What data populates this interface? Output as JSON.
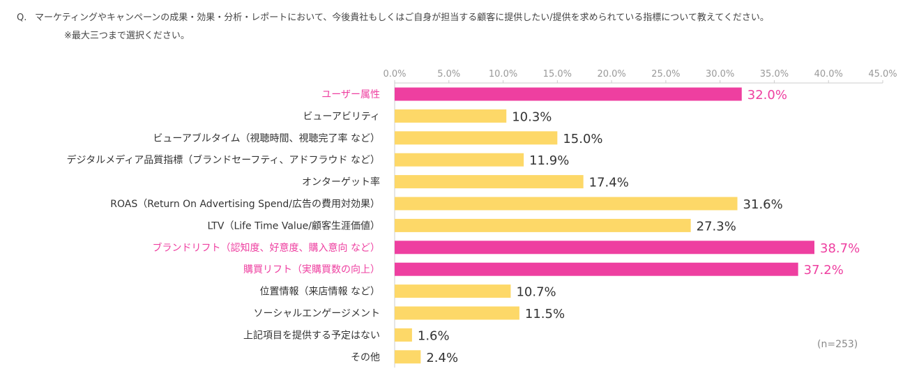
{
  "question": {
    "prefix": "Q.",
    "text": "マーケティングやキャンペーンの成果・効果・分析・レポートにおいて、今後貴社もしくはご自身が担当する顧客に提供したい/提供を求められている指標について教えてください。",
    "note": "※最大三つまで選択ください。"
  },
  "sample_size": "(n=253)",
  "colors": {
    "highlight": "#EE3FA0",
    "normal": "#FDD868",
    "axis_text": "#999999",
    "label_text": "#333333"
  },
  "chart_data": {
    "type": "bar",
    "orientation": "horizontal",
    "unit": "%",
    "xlim": [
      0,
      45
    ],
    "ticks": [
      0,
      5,
      10,
      15,
      20,
      25,
      30,
      35,
      40,
      45
    ],
    "tick_labels": [
      "0.0%",
      "5.0%",
      "10.0%",
      "15.0%",
      "20.0%",
      "25.0%",
      "30.0%",
      "35.0%",
      "40.0%",
      "45.0%"
    ],
    "categories": [
      "ユーザー属性",
      "ビューアビリティ",
      "ビューアブルタイム（視聴時間、視聴完了率 など）",
      "デジタルメディア品質指標（ブランドセーフティ、アドフラウド など）",
      "オンターゲット率",
      "ROAS（Return On Advertising Spend/広告の費用対効果）",
      "LTV（Life Time Value/顧客生涯価値）",
      "ブランドリフト（認知度、好意度、購入意向 など）",
      "購買リフト（実購買数の向上）",
      "位置情報（来店情報 など）",
      "ソーシャルエンゲージメント",
      "上記項目を提供する予定はない",
      "その他"
    ],
    "values": [
      32.0,
      10.3,
      15.0,
      11.9,
      17.4,
      31.6,
      27.3,
      38.7,
      37.2,
      10.7,
      11.5,
      1.6,
      2.4
    ],
    "value_labels": [
      "32.0%",
      "10.3%",
      "15.0%",
      "11.9%",
      "17.4%",
      "31.6%",
      "27.3%",
      "38.7%",
      "37.2%",
      "10.7%",
      "11.5%",
      "1.6%",
      "2.4%"
    ],
    "highlighted": [
      true,
      false,
      false,
      false,
      false,
      false,
      false,
      true,
      true,
      false,
      false,
      false,
      false
    ],
    "grid": false
  }
}
